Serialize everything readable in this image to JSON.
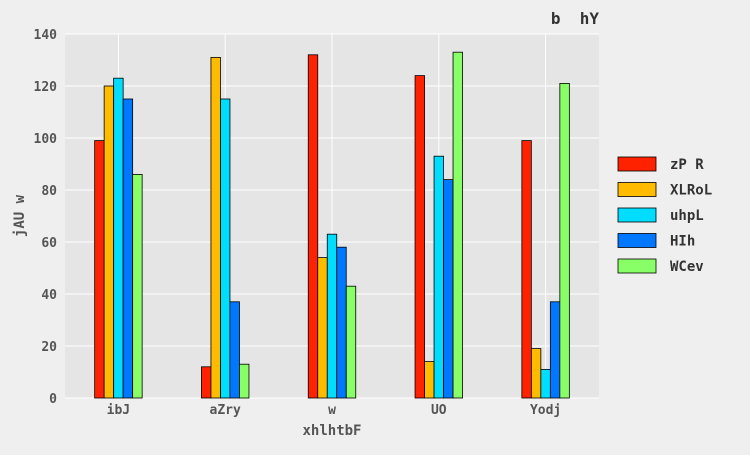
{
  "chart_data": {
    "type": "bar",
    "title": "b  hY",
    "xlabel": "xhlhtbF",
    "ylabel": "jAU w",
    "ylim": [
      0,
      140
    ],
    "yticks": [
      0,
      20,
      40,
      60,
      80,
      100,
      120,
      140
    ],
    "categories": [
      "ibJ",
      "aZry",
      "w",
      "UO",
      "Yodj"
    ],
    "grid": true,
    "legend_position": "right",
    "series": [
      {
        "name": "zP R",
        "color": "#ff2200",
        "values": [
          99,
          12,
          132,
          124,
          99
        ]
      },
      {
        "name": "XLRoL",
        "color": "#ffbb00",
        "values": [
          120,
          131,
          54,
          14,
          19
        ]
      },
      {
        "name": "uhpL",
        "color": "#00ddff",
        "values": [
          123,
          115,
          63,
          93,
          11
        ]
      },
      {
        "name": "HIh",
        "color": "#0077ff",
        "values": [
          115,
          37,
          58,
          84,
          37
        ]
      },
      {
        "name": "WCev",
        "color": "#88ff66",
        "values": [
          86,
          13,
          43,
          133,
          121
        ]
      }
    ]
  }
}
